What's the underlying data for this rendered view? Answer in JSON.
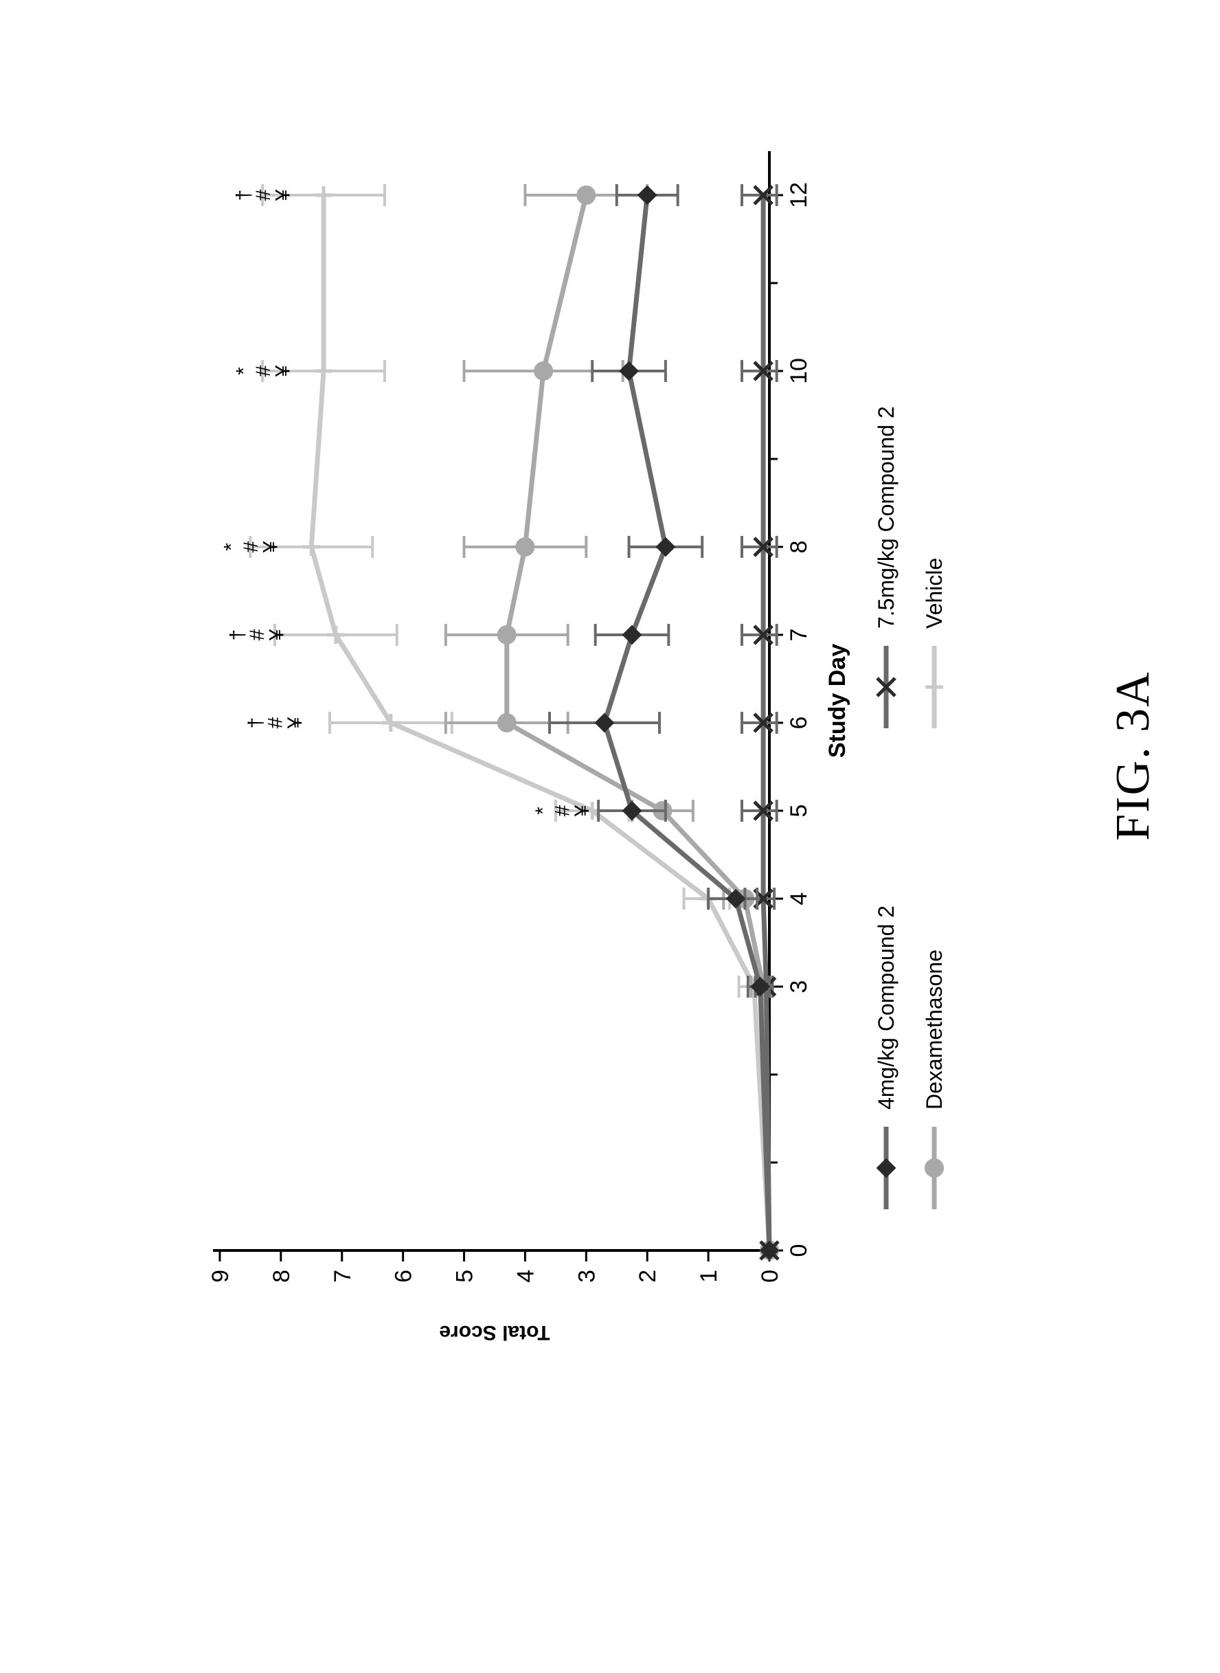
{
  "figure_label": "FIG. 3A",
  "chart": {
    "type": "line",
    "x_label": "Study Day",
    "y_label": "Total Score",
    "x_label_fontsize": 34,
    "y_label_fontsize": 30,
    "tick_fontsize": 34,
    "axis_color": "#000000",
    "grid": false,
    "background_color": "#ffffff",
    "line_width": 7,
    "marker_size": 13,
    "error_cap_width": 16,
    "error_line_width": 4,
    "x_values": [
      0,
      3,
      4,
      5,
      6,
      7,
      8,
      10,
      12
    ],
    "x_axis": {
      "min": 0,
      "max": 12.5,
      "ticks": [
        0,
        1,
        2,
        3,
        4,
        5,
        6,
        7,
        8,
        9,
        10,
        11,
        12
      ],
      "major_ticks": [
        0,
        3,
        4,
        5,
        6,
        7,
        8,
        10,
        12
      ]
    },
    "y_axis": {
      "min": 0,
      "max": 9,
      "ticks": [
        0,
        1,
        2,
        3,
        4,
        5,
        6,
        7,
        8,
        9
      ]
    },
    "annotations": [
      {
        "x": 5,
        "y_top": 3.6,
        "text": "*#¥"
      },
      {
        "x": 6,
        "y_top": 8.3,
        "text": "†#¥"
      },
      {
        "x": 7,
        "y_top": 8.6,
        "text": "†#¥"
      },
      {
        "x": 8,
        "y_top": 8.7,
        "text": "*#¥"
      },
      {
        "x": 10,
        "y_top": 8.5,
        "text": "*#¥"
      },
      {
        "x": 12,
        "y_top": 8.5,
        "text": "†#¥"
      }
    ],
    "annotation_fontsize": 30,
    "annotation_color": "#000000",
    "series": [
      {
        "id": "comp2_4mg",
        "label": "4mg/kg Compound 2",
        "color": "#6a6a6a",
        "marker": "diamond",
        "marker_fill": "#2a2a2a",
        "y": [
          0,
          0.15,
          0.55,
          2.25,
          2.7,
          2.25,
          1.7,
          2.3,
          2.0
        ],
        "err_low": [
          0,
          0.15,
          0.35,
          0.55,
          0.9,
          0.6,
          0.6,
          0.6,
          0.5
        ],
        "err_high": [
          0,
          0.2,
          0.45,
          0.55,
          0.9,
          0.6,
          0.6,
          0.6,
          0.5
        ]
      },
      {
        "id": "comp2_7_5mg",
        "label": "7.5mg/kg Compound 2",
        "color": "#6a6a6a",
        "marker": "x",
        "marker_fill": "#2a2a2a",
        "y": [
          0,
          0.05,
          0.1,
          0.1,
          0.1,
          0.1,
          0.1,
          0.1,
          0.1
        ],
        "err_low": [
          0,
          0.1,
          0.18,
          0.22,
          0.22,
          0.22,
          0.22,
          0.22,
          0.22
        ],
        "err_high": [
          0,
          0.18,
          0.3,
          0.35,
          0.35,
          0.35,
          0.35,
          0.35,
          0.35
        ]
      },
      {
        "id": "dexamethasone",
        "label": "Dexamethasone",
        "color": "#a8a8a8",
        "marker": "circle",
        "marker_fill": "#a8a8a8",
        "y": [
          0,
          0.1,
          0.4,
          1.75,
          4.3,
          4.3,
          4.0,
          3.7,
          3.0
        ],
        "err_low": [
          0,
          0.15,
          0.3,
          0.5,
          1.0,
          1.0,
          1.0,
          1.3,
          1.0
        ],
        "err_high": [
          0,
          0.2,
          0.35,
          0.5,
          1.0,
          1.0,
          1.0,
          1.3,
          1.0
        ]
      },
      {
        "id": "vehicle",
        "label": "Vehicle",
        "color": "#c9c9c9",
        "marker": "plus",
        "marker_fill": "#c9c9c9",
        "y": [
          0,
          0.25,
          1.0,
          2.9,
          6.2,
          7.1,
          7.5,
          7.3,
          7.3
        ],
        "err_low": [
          0,
          0.2,
          0.35,
          0.6,
          1.0,
          1.0,
          1.0,
          1.0,
          1.0
        ],
        "err_high": [
          0,
          0.25,
          0.4,
          0.6,
          1.0,
          1.0,
          1.0,
          1.0,
          1.0
        ]
      }
    ],
    "legend": {
      "columns": 2,
      "fontsize": 32,
      "order": [
        "comp2_4mg",
        "comp2_7_5mg",
        "dexamethasone",
        "vehicle"
      ]
    }
  }
}
